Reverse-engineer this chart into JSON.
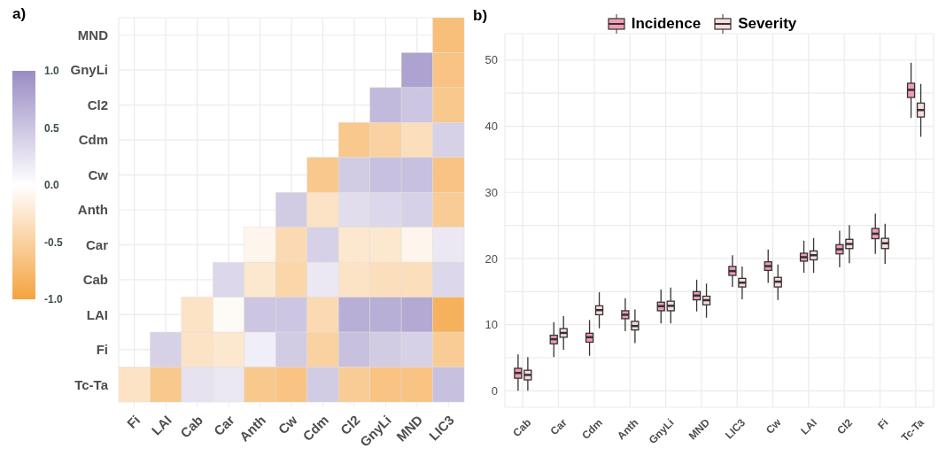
{
  "chart_data": [
    {
      "type": "heatmap",
      "title": "a)",
      "categories": [
        "Fi",
        "LAI",
        "Cab",
        "Car",
        "Anth",
        "Cw",
        "Cdm",
        "Cl2",
        "GnyLi",
        "MND",
        "LIC3"
      ],
      "y_categories": [
        "MND",
        "GnyLi",
        "Cl2",
        "Cdm",
        "Cw",
        "Anth",
        "Car",
        "Cab",
        "LAI",
        "Fi",
        "Tc-Ta"
      ],
      "cells": [
        [
          null,
          null,
          null,
          null,
          null,
          null,
          null,
          null,
          null,
          null,
          -0.7
        ],
        [
          null,
          null,
          null,
          null,
          null,
          null,
          null,
          null,
          null,
          0.8,
          -0.65
        ],
        [
          null,
          null,
          null,
          null,
          null,
          null,
          null,
          null,
          0.6,
          0.5,
          -0.6
        ],
        [
          null,
          null,
          null,
          null,
          null,
          null,
          null,
          -0.6,
          -0.5,
          -0.35,
          0.4
        ],
        [
          null,
          null,
          null,
          null,
          null,
          null,
          -0.6,
          0.45,
          0.55,
          0.55,
          -0.65
        ],
        [
          null,
          null,
          null,
          null,
          null,
          0.45,
          -0.3,
          0.3,
          0.35,
          0.4,
          -0.55
        ],
        [
          null,
          null,
          null,
          null,
          -0.1,
          -0.4,
          0.4,
          -0.25,
          -0.25,
          -0.1,
          0.2
        ],
        [
          null,
          null,
          null,
          0.35,
          -0.25,
          -0.45,
          0.2,
          -0.3,
          -0.35,
          -0.35,
          0.35
        ],
        [
          null,
          null,
          -0.3,
          -0.05,
          0.5,
          0.5,
          -0.4,
          0.7,
          0.7,
          0.75,
          -0.85
        ],
        [
          null,
          0.4,
          -0.3,
          -0.25,
          0.15,
          0.45,
          -0.5,
          0.55,
          0.45,
          0.4,
          -0.55
        ],
        [
          -0.3,
          -0.6,
          0.25,
          0.2,
          -0.6,
          -0.65,
          0.45,
          -0.55,
          -0.65,
          -0.65,
          0.55
        ]
      ],
      "clim": [
        -1,
        1
      ],
      "cticks": [
        {
          "value": -1,
          "label": "-1.0"
        },
        {
          "value": -0.5,
          "label": "-0.5"
        },
        {
          "value": 0,
          "label": "0.0"
        },
        {
          "value": 0.5,
          "label": "0.5"
        },
        {
          "value": 1,
          "label": "1.0"
        }
      ],
      "grid": true
    },
    {
      "type": "box",
      "title": "b)",
      "categories": [
        "Cab",
        "Car",
        "Cdm",
        "Anth",
        "GnyLi",
        "MND",
        "LIC3",
        "Cw",
        "LAI",
        "Cl2",
        "Fi",
        "Tc-Ta"
      ],
      "series": [
        {
          "name": "Incidence",
          "color": "#f19bb5",
          "boxes": [
            {
              "low": 0,
              "q1": 1.9,
              "median": 2.7,
              "q3": 3.4,
              "high": 5.5
            },
            {
              "low": 5.1,
              "q1": 7.1,
              "median": 7.8,
              "q3": 8.4,
              "high": 10.4
            },
            {
              "low": 5.3,
              "q1": 7.35,
              "median": 8.1,
              "q3": 8.7,
              "high": 10.7
            },
            {
              "low": 9,
              "q1": 10.9,
              "median": 11.5,
              "q3": 12.1,
              "high": 14
            },
            {
              "low": 10.2,
              "q1": 12.1,
              "median": 12.8,
              "q3": 13.4,
              "high": 15.3
            },
            {
              "low": 12,
              "q1": 13.75,
              "median": 14.4,
              "q3": 15,
              "high": 16.8
            },
            {
              "low": 15.7,
              "q1": 17.45,
              "median": 18.1,
              "q3": 18.8,
              "high": 20.5
            },
            {
              "low": 16.3,
              "q1": 18.2,
              "median": 18.85,
              "q3": 19.5,
              "high": 21.35
            },
            {
              "low": 17.85,
              "q1": 19.6,
              "median": 20.2,
              "q3": 20.8,
              "high": 22.7
            },
            {
              "low": 18.7,
              "q1": 20.7,
              "median": 21.4,
              "q3": 22.1,
              "high": 24.2
            },
            {
              "low": 20.7,
              "q1": 23,
              "median": 23.75,
              "q3": 24.55,
              "high": 26.8
            },
            {
              "low": 41.25,
              "q1": 44.35,
              "median": 45.5,
              "q3": 46.5,
              "high": 49.6
            }
          ]
        },
        {
          "name": "Severity",
          "color": "#fadcdc",
          "boxes": [
            {
              "low": 0,
              "q1": 1.65,
              "median": 2.4,
              "q3": 3.1,
              "high": 5.1
            },
            {
              "low": 6.2,
              "q1": 8.1,
              "median": 8.75,
              "q3": 9.4,
              "high": 11.3
            },
            {
              "low": 9.45,
              "q1": 11.5,
              "median": 12.2,
              "q3": 12.85,
              "high": 14.9
            },
            {
              "low": 7.2,
              "q1": 9.2,
              "median": 9.8,
              "q3": 10.5,
              "high": 12.3
            },
            {
              "low": 10.2,
              "q1": 12.1,
              "median": 12.85,
              "q3": 13.55,
              "high": 15.6
            },
            {
              "low": 11.05,
              "q1": 13,
              "median": 13.7,
              "q3": 14.3,
              "high": 16.2
            },
            {
              "low": 13.85,
              "q1": 15.7,
              "median": 16.35,
              "q3": 17,
              "high": 18.8
            },
            {
              "low": 13.75,
              "q1": 15.7,
              "median": 16.5,
              "q3": 17.15,
              "high": 19.1
            },
            {
              "low": 17.85,
              "q1": 19.8,
              "median": 20.5,
              "q3": 21.15,
              "high": 23.1
            },
            {
              "low": 19.3,
              "q1": 21.5,
              "median": 22.2,
              "q3": 22.9,
              "high": 25.05
            },
            {
              "low": 19.2,
              "q1": 21.5,
              "median": 22.3,
              "q3": 23.05,
              "high": 25.25
            },
            {
              "low": 38.4,
              "q1": 41.4,
              "median": 42.45,
              "q3": 43.5,
              "high": 46.4
            }
          ]
        }
      ],
      "ylim": [
        -2.5,
        54
      ],
      "yticks": [
        0,
        {
          "value": 5,
          "label": null
        },
        10,
        {
          "value": 15,
          "label": null
        },
        20,
        {
          "value": 25,
          "label": null
        },
        30,
        {
          "value": 35,
          "label": null
        },
        40,
        {
          "value": 45,
          "label": null
        },
        50
      ],
      "grid": true,
      "legend": "top"
    }
  ]
}
